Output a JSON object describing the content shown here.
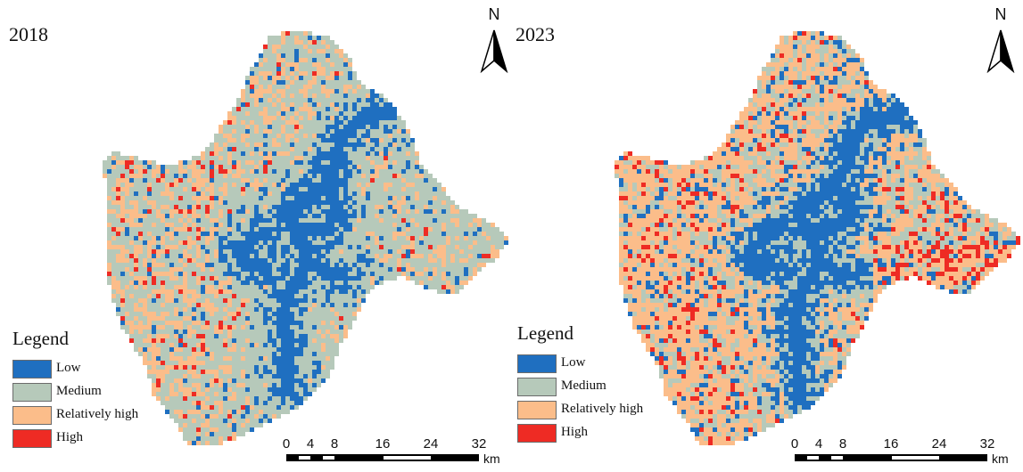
{
  "colors": {
    "low": "#1f6fc0",
    "medium": "#b6c9ba",
    "relatively_high": "#fbbd8a",
    "high": "#ee2b24"
  },
  "north_label": "N",
  "legend": {
    "title": "Legend",
    "items": [
      {
        "key": "low",
        "label": "Low",
        "color": "#1f6fc0"
      },
      {
        "key": "medium",
        "label": "Medium",
        "color": "#b6c9ba"
      },
      {
        "key": "relatively_high",
        "label": "Relatively high",
        "color": "#fbbd8a"
      },
      {
        "key": "high",
        "label": "High",
        "color": "#ee2b24"
      }
    ]
  },
  "scale": {
    "ticks": [
      "0",
      "4",
      "8",
      "16",
      "24",
      "32"
    ],
    "unit": "km"
  },
  "maps": [
    {
      "year": "2018",
      "pattern": "less red, more medium"
    },
    {
      "year": "2023",
      "pattern": "more relatively high and high"
    }
  ]
}
